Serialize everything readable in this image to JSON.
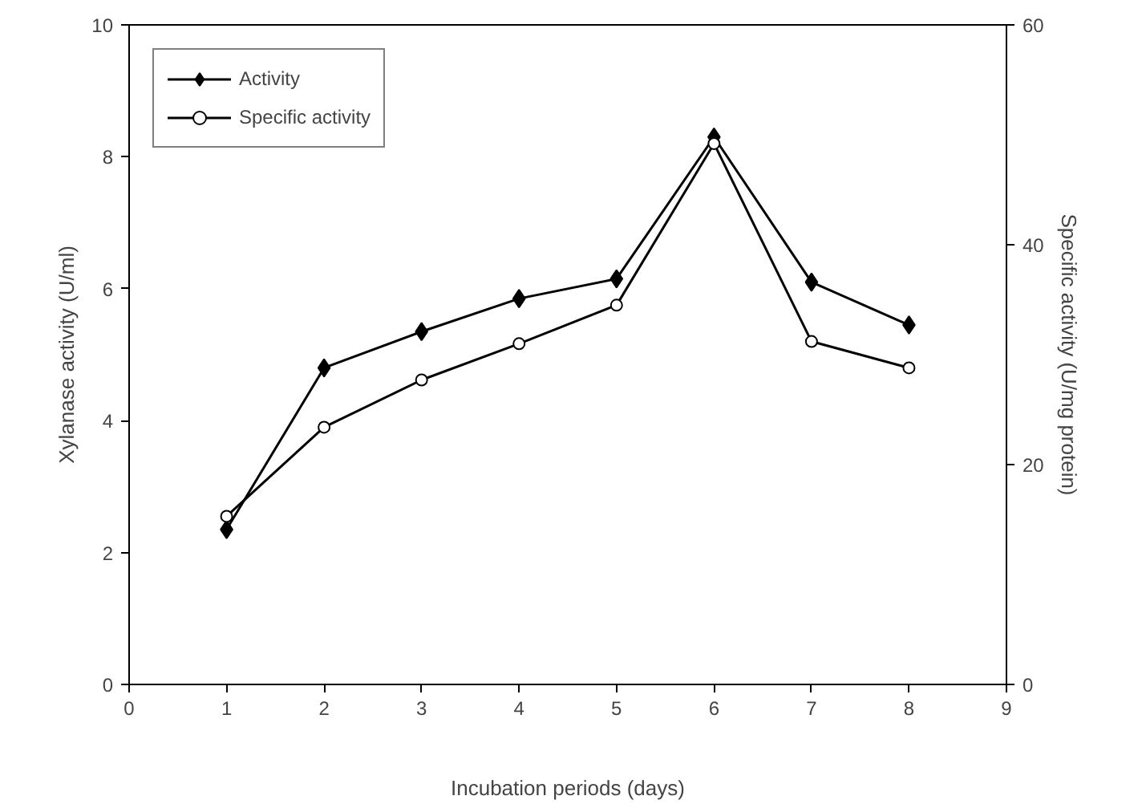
{
  "chart_data": {
    "type": "line",
    "xlabel": "Incubation periods (days)",
    "ylabel": "Xylanase activity (U/ml)",
    "y2label": "Specific activity (U/mg protein)",
    "x": [
      1,
      2,
      3,
      4,
      5,
      6,
      7,
      8
    ],
    "xlim": [
      0,
      9
    ],
    "xticks": [
      0,
      1,
      2,
      3,
      4,
      5,
      6,
      7,
      8,
      9
    ],
    "ylim": [
      0,
      10
    ],
    "yticks": [
      0,
      2,
      4,
      6,
      8,
      10
    ],
    "y2lim": [
      0,
      60
    ],
    "y2ticks": [
      0,
      20,
      40,
      60
    ],
    "grid": false,
    "legend": "top left",
    "series": [
      {
        "name": "Activity",
        "color": "#000000",
        "marker": "diamond",
        "values": [
          2.35,
          4.8,
          5.35,
          5.85,
          6.15,
          8.3,
          6.1,
          5.45
        ]
      },
      {
        "name": "Specific activity",
        "color": "#000000",
        "marker": "circle",
        "axis": "y2",
        "values": [
          15.3,
          23.4,
          27.7,
          31.0,
          34.5,
          49.2,
          31.2,
          28.8
        ]
      }
    ]
  }
}
